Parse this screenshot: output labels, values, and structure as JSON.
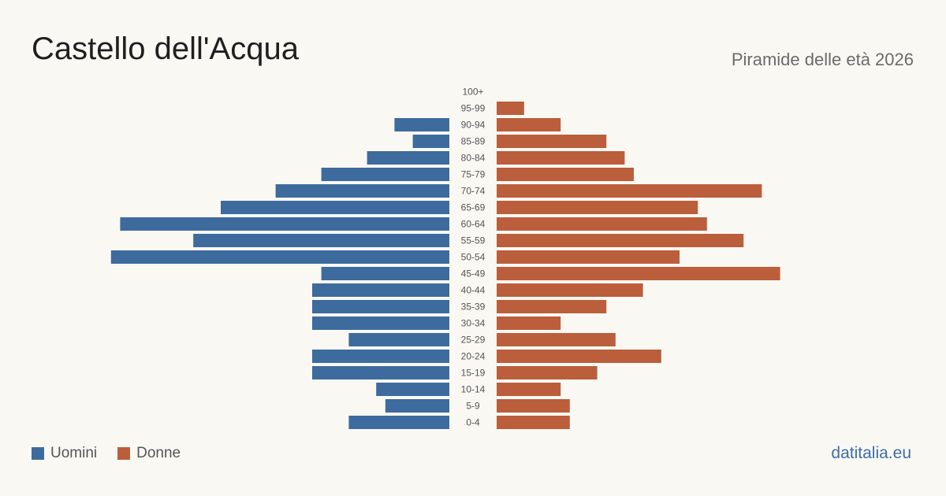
{
  "header": {
    "title": "Castello dell'Acqua",
    "subtitle": "Piramide delle età 2026"
  },
  "legend": {
    "men_label": "Uomini",
    "women_label": "Donne"
  },
  "source": "datitalia.eu",
  "colors": {
    "men": "#3d6b9e",
    "women": "#bb5e3c",
    "background": "#faf8f3"
  },
  "chart_data": {
    "type": "bar",
    "orientation": "horizontal-pyramid",
    "categories": [
      "100+",
      "95-99",
      "90-94",
      "85-89",
      "80-84",
      "75-79",
      "70-74",
      "65-69",
      "60-64",
      "55-59",
      "50-54",
      "45-49",
      "40-44",
      "35-39",
      "30-34",
      "25-29",
      "20-24",
      "15-19",
      "10-14",
      "5-9",
      "0-4"
    ],
    "series": [
      {
        "name": "Uomini",
        "values": [
          0,
          0,
          6,
          4,
          9,
          14,
          19,
          25,
          36,
          28,
          37,
          14,
          15,
          15,
          15,
          11,
          15,
          15,
          8,
          7,
          11
        ]
      },
      {
        "name": "Donne",
        "values": [
          0,
          3,
          7,
          12,
          14,
          15,
          29,
          22,
          23,
          27,
          20,
          31,
          16,
          12,
          7,
          13,
          18,
          11,
          7,
          8,
          8
        ]
      }
    ],
    "legend_position": "bottom-left",
    "grid": false
  }
}
